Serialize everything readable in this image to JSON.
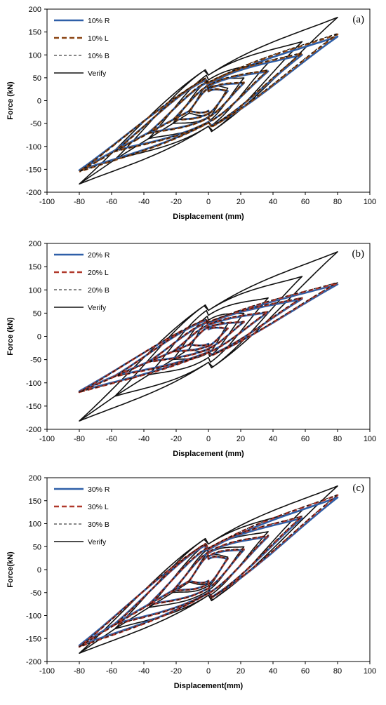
{
  "chart_data": [
    {
      "type": "line",
      "panel_label": "(a)",
      "xlabel": "Displacement (mm)",
      "ylabel": "Force (kN)",
      "xlim": [
        -100,
        100
      ],
      "ylim": [
        -200,
        200
      ],
      "x_ticks": [
        -100,
        -80,
        -60,
        -40,
        -20,
        0,
        20,
        40,
        60,
        80,
        100
      ],
      "y_ticks": [
        -200,
        -150,
        -100,
        -50,
        0,
        50,
        100,
        150,
        200
      ],
      "legend_position": "top-left",
      "series": [
        {
          "name": "10% R",
          "color": "#2e5fa8",
          "style": "solid-thick",
          "amplitudes": [
            12,
            22,
            37,
            58,
            80
          ],
          "peak_pos": 140,
          "peak_neg": -152,
          "cap": 34,
          "curv": 0.27
        },
        {
          "name": "10% L",
          "color": "#8b4513",
          "style": "dashed-thick",
          "amplitudes": [
            12,
            22,
            37,
            58,
            80
          ],
          "peak_pos": 145,
          "peak_neg": -155,
          "cap": 35,
          "curv": 0.27
        },
        {
          "name": "10% B",
          "color": "#111111",
          "style": "dashed-thin",
          "amplitudes": [
            12,
            22,
            37,
            58,
            80
          ],
          "peak_pos": 147,
          "peak_neg": -155,
          "cap": 35,
          "curv": 0.27
        },
        {
          "name": "Verify",
          "color": "#111111",
          "style": "solid",
          "amplitudes": [
            12,
            22,
            37,
            58,
            80
          ],
          "peak_pos": 182,
          "peak_neg": -182,
          "cap": 45,
          "curv": 0.45
        }
      ]
    },
    {
      "type": "line",
      "panel_label": "(b)",
      "xlabel": "Displacement (mm)",
      "ylabel": "Force (kN)",
      "xlim": [
        -100,
        100
      ],
      "ylim": [
        -200,
        200
      ],
      "x_ticks": [
        -100,
        -80,
        -60,
        -40,
        -20,
        0,
        20,
        40,
        60,
        80,
        100
      ],
      "y_ticks": [
        -200,
        -150,
        -100,
        -50,
        0,
        50,
        100,
        150,
        200
      ],
      "legend_position": "top-left",
      "series": [
        {
          "name": "20% R",
          "color": "#2e5fa8",
          "style": "solid-thick",
          "amplitudes": [
            12,
            22,
            37,
            58,
            80
          ],
          "peak_pos": 112,
          "peak_neg": -118,
          "cap": 25,
          "curv": 0.15
        },
        {
          "name": "20% L",
          "color": "#b0392b",
          "style": "dashed-thick",
          "amplitudes": [
            12,
            22,
            37,
            58,
            80
          ],
          "peak_pos": 115,
          "peak_neg": -120,
          "cap": 26,
          "curv": 0.15
        },
        {
          "name": "20% B",
          "color": "#111111",
          "style": "dashed-thin",
          "amplitudes": [
            12,
            22,
            37,
            58,
            80
          ],
          "peak_pos": 116,
          "peak_neg": -120,
          "cap": 26,
          "curv": 0.15
        },
        {
          "name": "Verify",
          "color": "#111111",
          "style": "solid",
          "amplitudes": [
            12,
            22,
            37,
            58,
            80
          ],
          "peak_pos": 182,
          "peak_neg": -182,
          "cap": 45,
          "curv": 0.45
        }
      ]
    },
    {
      "type": "line",
      "panel_label": "(c)",
      "xlabel": "Displacement(mm)",
      "ylabel": "Force(kN)",
      "xlim": [
        -100,
        100
      ],
      "ylim": [
        -200,
        200
      ],
      "x_ticks": [
        -100,
        -80,
        -60,
        -40,
        -20,
        0,
        20,
        40,
        60,
        80,
        100
      ],
      "y_ticks": [
        -200,
        -150,
        -100,
        -50,
        0,
        50,
        100,
        150,
        200
      ],
      "legend_position": "top-left",
      "series": [
        {
          "name": "30% R",
          "color": "#2e5fa8",
          "style": "solid-thick",
          "amplitudes": [
            12,
            22,
            37,
            58,
            80
          ],
          "peak_pos": 157,
          "peak_neg": -165,
          "cap": 38,
          "curv": 0.3
        },
        {
          "name": "30% L",
          "color": "#b0392b",
          "style": "dashed-thick",
          "amplitudes": [
            12,
            22,
            37,
            58,
            80
          ],
          "peak_pos": 162,
          "peak_neg": -168,
          "cap": 39,
          "curv": 0.3
        },
        {
          "name": "30% B",
          "color": "#111111",
          "style": "dashed-thin",
          "amplitudes": [
            12,
            22,
            37,
            58,
            80
          ],
          "peak_pos": 163,
          "peak_neg": -168,
          "cap": 39,
          "curv": 0.3
        },
        {
          "name": "Verify",
          "color": "#111111",
          "style": "solid",
          "amplitudes": [
            12,
            22,
            37,
            58,
            80
          ],
          "peak_pos": 182,
          "peak_neg": -182,
          "cap": 45,
          "curv": 0.45
        }
      ]
    }
  ]
}
